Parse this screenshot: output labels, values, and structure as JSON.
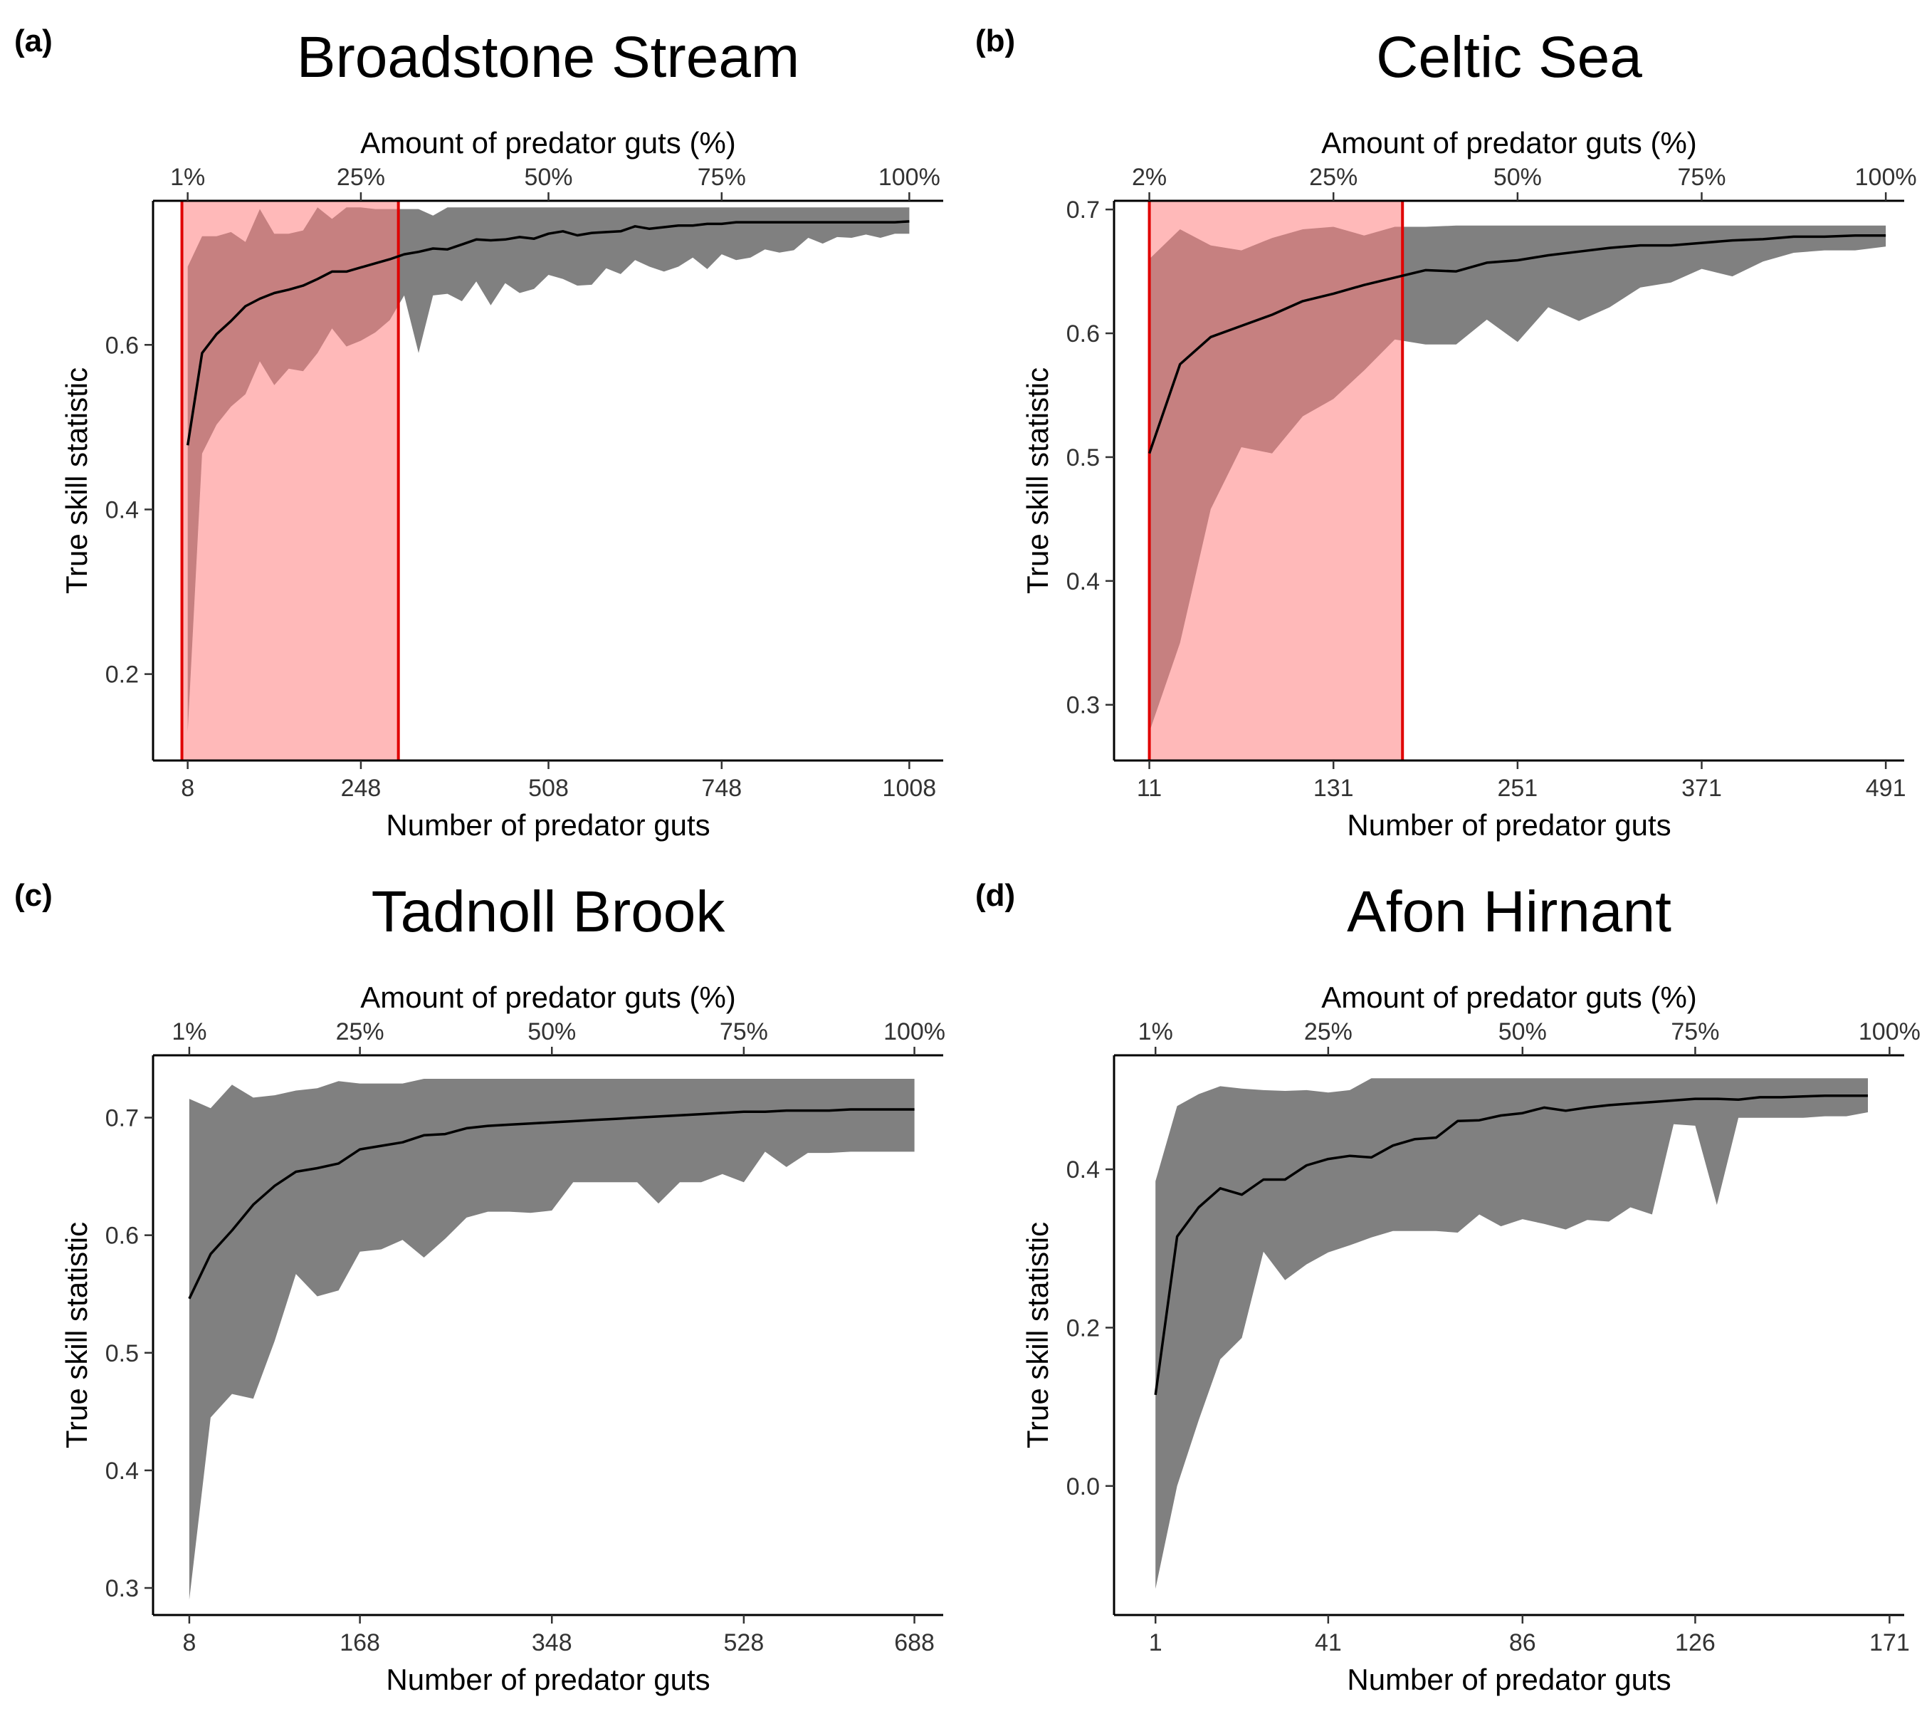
{
  "chart_data": [
    {
      "type": "area",
      "panel_label": "(a)",
      "title": "Broadstone Stream",
      "xlabel": "Number of predator guts",
      "ylabel": "True skill statistic",
      "x2label": "Amount of predator guts (%)",
      "xlim": [
        -40,
        1055
      ],
      "ylim": [
        0.095,
        0.775
      ],
      "xticks": [
        8,
        248,
        508,
        748,
        1008
      ],
      "yticks": [
        0.2,
        0.4,
        0.6
      ],
      "ytick_labels": [
        "0.2",
        "0.4",
        "0.6"
      ],
      "x2ticks": [
        {
          "x": 8,
          "label": "1%"
        },
        {
          "x": 248,
          "label": "25%"
        },
        {
          "x": 508,
          "label": "50%"
        },
        {
          "x": 748,
          "label": "75%"
        },
        {
          "x": 1008,
          "label": "100%"
        }
      ],
      "highlight": {
        "x_start": 0,
        "x_end": 300,
        "color": "#FF8080",
        "edge_color": "#E00000"
      },
      "ribbon_color": "#808080",
      "series": [
        {
          "x": [
            8,
            28,
            48,
            68,
            88,
            108,
            128,
            148,
            168,
            188,
            208,
            228,
            248,
            268,
            288,
            308,
            328,
            348,
            368,
            388,
            408,
            428,
            448,
            468,
            488,
            508,
            528,
            548,
            568,
            588,
            608,
            628,
            648,
            668,
            688,
            708,
            728,
            748,
            768,
            788,
            808,
            828,
            848,
            868,
            888,
            908,
            928,
            948,
            968,
            988,
            1008
          ],
          "y": [
            0.478,
            0.59,
            0.613,
            0.629,
            0.647,
            0.656,
            0.663,
            0.667,
            0.672,
            0.68,
            0.689,
            0.689,
            0.694,
            0.699,
            0.704,
            0.71,
            0.713,
            0.717,
            0.716,
            0.722,
            0.728,
            0.727,
            0.728,
            0.731,
            0.729,
            0.735,
            0.738,
            0.733,
            0.736,
            0.737,
            0.738,
            0.744,
            0.741,
            0.743,
            0.745,
            0.745,
            0.747,
            0.747,
            0.749,
            0.749,
            0.749,
            0.749,
            0.749,
            0.749,
            0.749,
            0.749,
            0.749,
            0.749,
            0.749,
            0.749,
            0.75
          ],
          "lower": [
            0.13,
            0.468,
            0.503,
            0.525,
            0.54,
            0.58,
            0.551,
            0.571,
            0.568,
            0.59,
            0.62,
            0.598,
            0.605,
            0.615,
            0.63,
            0.66,
            0.59,
            0.66,
            0.662,
            0.653,
            0.677,
            0.648,
            0.675,
            0.663,
            0.668,
            0.685,
            0.68,
            0.672,
            0.673,
            0.693,
            0.686,
            0.703,
            0.695,
            0.689,
            0.695,
            0.706,
            0.692,
            0.71,
            0.703,
            0.706,
            0.716,
            0.712,
            0.715,
            0.73,
            0.723,
            0.731,
            0.73,
            0.734,
            0.73,
            0.735,
            0.735
          ],
          "upper": [
            0.695,
            0.732,
            0.732,
            0.737,
            0.725,
            0.765,
            0.735,
            0.735,
            0.739,
            0.767,
            0.753,
            0.767,
            0.767,
            0.765,
            0.765,
            0.765,
            0.765,
            0.757,
            0.767,
            0.767,
            0.767,
            0.767,
            0.767,
            0.767,
            0.767,
            0.767,
            0.767,
            0.767,
            0.767,
            0.767,
            0.767,
            0.767,
            0.767,
            0.767,
            0.767,
            0.767,
            0.767,
            0.767,
            0.767,
            0.767,
            0.767,
            0.767,
            0.767,
            0.767,
            0.767,
            0.767,
            0.767,
            0.767,
            0.767,
            0.767,
            0.767
          ]
        }
      ]
    },
    {
      "type": "area",
      "panel_label": "(b)",
      "title": "Celtic Sea",
      "xlabel": "Number of predator guts",
      "ylabel": "True skill statistic",
      "x2label": "Amount of predator guts (%)",
      "xlim": [
        -12,
        503
      ],
      "ylim": [
        0.255,
        0.707
      ],
      "xticks": [
        11,
        131,
        251,
        371,
        491
      ],
      "yticks": [
        0.3,
        0.4,
        0.5,
        0.6,
        0.7
      ],
      "ytick_labels": [
        "0.3",
        "0.4",
        "0.5",
        "0.6",
        "0.7"
      ],
      "x2ticks": [
        {
          "x": 11,
          "label": "2%"
        },
        {
          "x": 131,
          "label": "25%"
        },
        {
          "x": 251,
          "label": "50%"
        },
        {
          "x": 371,
          "label": "75%"
        },
        {
          "x": 491,
          "label": "100%"
        }
      ],
      "highlight": {
        "x_start": 11,
        "x_end": 176,
        "color": "#FF8080",
        "edge_color": "#E00000"
      },
      "ribbon_color": "#808080",
      "series": [
        {
          "x": [
            11,
            31,
            51,
            71,
            91,
            111,
            131,
            151,
            171,
            191,
            211,
            231,
            251,
            271,
            291,
            311,
            331,
            351,
            371,
            391,
            411,
            431,
            451,
            471,
            491
          ],
          "y": [
            0.503,
            0.575,
            0.597,
            0.606,
            0.615,
            0.626,
            0.632,
            0.639,
            0.645,
            0.651,
            0.65,
            0.657,
            0.659,
            0.663,
            0.666,
            0.669,
            0.671,
            0.671,
            0.673,
            0.675,
            0.676,
            0.678,
            0.678,
            0.679,
            0.679
          ],
          "lower": [
            0.278,
            0.35,
            0.458,
            0.508,
            0.503,
            0.533,
            0.547,
            0.57,
            0.595,
            0.591,
            0.591,
            0.611,
            0.593,
            0.621,
            0.61,
            0.621,
            0.637,
            0.641,
            0.652,
            0.646,
            0.658,
            0.665,
            0.667,
            0.667,
            0.67
          ],
          "upper": [
            0.66,
            0.684,
            0.671,
            0.667,
            0.677,
            0.684,
            0.686,
            0.679,
            0.686,
            0.686,
            0.687,
            0.687,
            0.687,
            0.687,
            0.687,
            0.687,
            0.687,
            0.687,
            0.687,
            0.687,
            0.687,
            0.687,
            0.687,
            0.687,
            0.687
          ]
        }
      ]
    },
    {
      "type": "area",
      "panel_label": "(c)",
      "title": "Tadnoll Brook",
      "xlabel": "Number of predator guts",
      "ylabel": "True skill statistic",
      "x2label": "Amount of predator guts (%)",
      "xlim": [
        -26,
        715
      ],
      "ylim": [
        0.277,
        0.753
      ],
      "xticks": [
        8,
        168,
        348,
        528,
        688
      ],
      "yticks": [
        0.3,
        0.4,
        0.5,
        0.6,
        0.7
      ],
      "ytick_labels": [
        "0.3",
        "0.4",
        "0.5",
        "0.6",
        "0.7"
      ],
      "x2ticks": [
        {
          "x": 8,
          "label": "1%"
        },
        {
          "x": 168,
          "label": "25%"
        },
        {
          "x": 348,
          "label": "50%"
        },
        {
          "x": 528,
          "label": "75%"
        },
        {
          "x": 688,
          "label": "100%"
        }
      ],
      "ribbon_color": "#808080",
      "series": [
        {
          "x": [
            8,
            28,
            48,
            68,
            88,
            108,
            128,
            148,
            168,
            188,
            208,
            228,
            248,
            268,
            288,
            308,
            328,
            348,
            368,
            388,
            408,
            428,
            448,
            468,
            488,
            508,
            528,
            548,
            568,
            588,
            608,
            628,
            648,
            668,
            688
          ],
          "y": [
            0.546,
            0.584,
            0.604,
            0.626,
            0.642,
            0.654,
            0.657,
            0.661,
            0.673,
            0.676,
            0.679,
            0.685,
            0.686,
            0.691,
            0.693,
            0.694,
            0.695,
            0.696,
            0.697,
            0.698,
            0.699,
            0.7,
            0.701,
            0.702,
            0.703,
            0.704,
            0.705,
            0.705,
            0.706,
            0.706,
            0.706,
            0.707,
            0.707,
            0.707,
            0.707
          ],
          "lower": [
            0.29,
            0.445,
            0.465,
            0.461,
            0.51,
            0.567,
            0.548,
            0.553,
            0.586,
            0.588,
            0.596,
            0.581,
            0.597,
            0.615,
            0.62,
            0.62,
            0.619,
            0.621,
            0.645,
            0.645,
            0.645,
            0.645,
            0.627,
            0.645,
            0.645,
            0.652,
            0.645,
            0.671,
            0.658,
            0.67,
            0.67,
            0.671,
            0.671,
            0.671,
            0.671
          ],
          "upper": [
            0.716,
            0.708,
            0.728,
            0.717,
            0.719,
            0.723,
            0.725,
            0.731,
            0.729,
            0.729,
            0.729,
            0.733,
            0.733,
            0.733,
            0.733,
            0.733,
            0.733,
            0.733,
            0.733,
            0.733,
            0.733,
            0.733,
            0.733,
            0.733,
            0.733,
            0.733,
            0.733,
            0.733,
            0.733,
            0.733,
            0.733,
            0.733,
            0.733,
            0.733,
            0.733
          ]
        }
      ]
    },
    {
      "type": "area",
      "panel_label": "(d)",
      "title": "Afon Hirnant",
      "xlabel": "Number of predator guts",
      "ylabel": "True skill statistic",
      "x2label": "Amount of predator guts (%)",
      "xlim": [
        -8.6,
        174.4
      ],
      "ylim": [
        -0.163,
        0.544
      ],
      "xticks": [
        1,
        41,
        86,
        126,
        171
      ],
      "yticks": [
        0.0,
        0.2,
        0.4
      ],
      "ytick_labels": [
        "0.0",
        "0.2",
        "0.4"
      ],
      "x2ticks": [
        {
          "x": 1,
          "label": "1%"
        },
        {
          "x": 41,
          "label": "25%"
        },
        {
          "x": 86,
          "label": "50%"
        },
        {
          "x": 126,
          "label": "75%"
        },
        {
          "x": 171,
          "label": "100%"
        }
      ],
      "ribbon_color": "#808080",
      "series": [
        {
          "x": [
            1,
            6,
            11,
            16,
            21,
            26,
            31,
            36,
            41,
            46,
            51,
            56,
            61,
            66,
            71,
            76,
            81,
            86,
            91,
            96,
            101,
            106,
            111,
            116,
            121,
            126,
            131,
            136,
            141,
            146,
            151,
            156,
            161,
            166
          ],
          "y": [
            0.115,
            0.315,
            0.352,
            0.376,
            0.368,
            0.387,
            0.387,
            0.405,
            0.413,
            0.417,
            0.415,
            0.43,
            0.438,
            0.44,
            0.461,
            0.462,
            0.468,
            0.471,
            0.478,
            0.474,
            0.478,
            0.481,
            0.483,
            0.485,
            0.487,
            0.489,
            0.489,
            0.488,
            0.491,
            0.491,
            0.492,
            0.493,
            0.493,
            0.493
          ],
          "lower": [
            -0.13,
            0.0,
            0.083,
            0.16,
            0.187,
            0.296,
            0.26,
            0.28,
            0.295,
            0.304,
            0.314,
            0.322,
            0.322,
            0.322,
            0.32,
            0.343,
            0.328,
            0.337,
            0.331,
            0.324,
            0.336,
            0.334,
            0.352,
            0.343,
            0.457,
            0.455,
            0.355,
            0.465,
            0.465,
            0.465,
            0.465,
            0.467,
            0.467,
            0.472
          ],
          "upper": [
            0.385,
            0.48,
            0.495,
            0.505,
            0.502,
            0.5,
            0.499,
            0.5,
            0.497,
            0.5,
            0.515,
            0.515,
            0.515,
            0.515,
            0.515,
            0.515,
            0.515,
            0.515,
            0.515,
            0.515,
            0.515,
            0.515,
            0.515,
            0.515,
            0.515,
            0.515,
            0.515,
            0.515,
            0.515,
            0.515,
            0.515,
            0.515,
            0.515,
            0.515
          ]
        }
      ]
    }
  ]
}
